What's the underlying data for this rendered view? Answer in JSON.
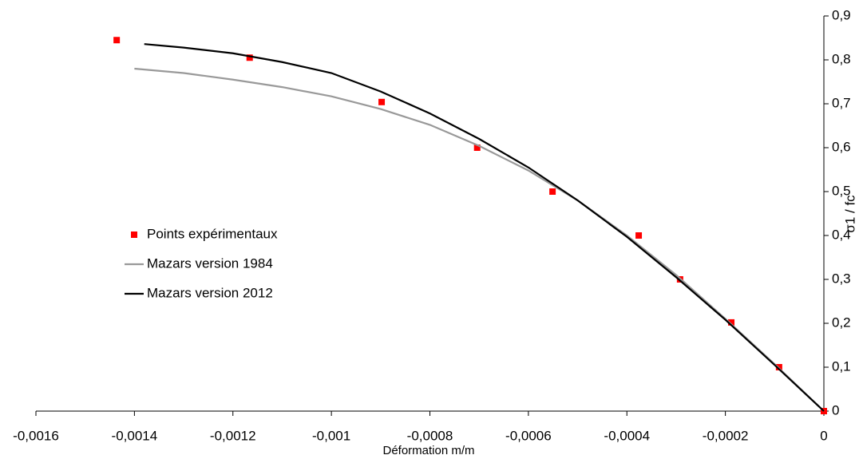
{
  "chart_data": {
    "type": "scatter",
    "xlabel": "Déformation m/m",
    "ylabel": "σ1 / fc",
    "xlim": [
      -0.0016,
      0
    ],
    "ylim": [
      0,
      0.9
    ],
    "xticks": [
      {
        "value": -0.0016,
        "label": "-0,0016"
      },
      {
        "value": -0.0014,
        "label": "-0,0014"
      },
      {
        "value": -0.0012,
        "label": "-0,0012"
      },
      {
        "value": -0.001,
        "label": "-0,001"
      },
      {
        "value": -0.0008,
        "label": "-0,0008"
      },
      {
        "value": -0.0006,
        "label": "-0,0006"
      },
      {
        "value": -0.0004,
        "label": "-0,0004"
      },
      {
        "value": -0.0002,
        "label": "-0,0002"
      },
      0
    ],
    "yticks": [
      0,
      {
        "value": 0.1,
        "label": "0,1"
      },
      {
        "value": 0.2,
        "label": "0,2"
      },
      {
        "value": 0.3,
        "label": "0,3"
      },
      {
        "value": 0.4,
        "label": "0,4"
      },
      {
        "value": 0.5,
        "label": "0,5"
      },
      {
        "value": 0.6,
        "label": "0,6"
      },
      {
        "value": 0.7,
        "label": "0,7"
      },
      {
        "value": 0.8,
        "label": "0,8"
      },
      {
        "value": 0.9,
        "label": "0,9"
      }
    ],
    "grid": false,
    "legend": "left",
    "series": [
      {
        "name": "Points expérimentaux",
        "color": "#ff0000",
        "mode": "markers",
        "x": [
          -0.001436,
          -0.001166,
          -0.000898,
          -0.000704,
          -0.000551,
          -0.000376,
          -0.000292,
          -0.000188,
          -9.1e-05,
          0
        ],
        "values": [
          0.845,
          0.805,
          0.704,
          0.6,
          0.5,
          0.4,
          0.3,
          0.202,
          0.1,
          0
        ]
      },
      {
        "name": "Mazars version 1984",
        "color": "#999999",
        "mode": "lines",
        "x": [
          -0.0014,
          -0.0013,
          -0.0012,
          -0.0011,
          -0.001,
          -0.0009,
          -0.0008,
          -0.0007,
          -0.0006,
          -0.0005,
          -0.0004,
          -0.0003,
          -0.0002,
          -0.0001,
          0
        ],
        "values": [
          0.78,
          0.77,
          0.755,
          0.738,
          0.717,
          0.688,
          0.652,
          0.604,
          0.548,
          0.48,
          0.4,
          0.31,
          0.21,
          0.107,
          0
        ]
      },
      {
        "name": "Mazars version 2012",
        "color": "#000000",
        "mode": "lines",
        "x": [
          -0.00138,
          -0.0013,
          -0.0012,
          -0.0011,
          -0.001,
          -0.0009,
          -0.0008,
          -0.0007,
          -0.0006,
          -0.0005,
          -0.0004,
          -0.0003,
          -0.0002,
          -0.0001,
          0
        ],
        "values": [
          0.836,
          0.828,
          0.815,
          0.795,
          0.77,
          0.728,
          0.678,
          0.62,
          0.555,
          0.48,
          0.397,
          0.305,
          0.208,
          0.105,
          0
        ]
      }
    ]
  }
}
